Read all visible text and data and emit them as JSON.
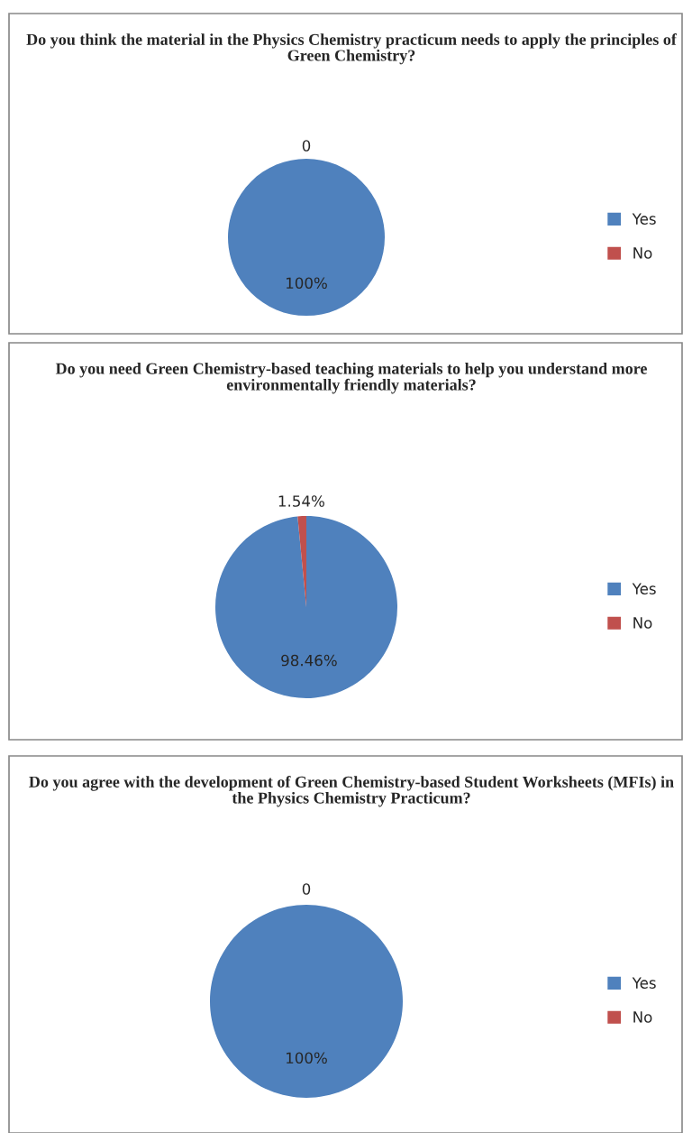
{
  "chart_data": [
    {
      "type": "pie",
      "title": "Do you think the material in the Physics Chemistry practicum needs to apply the principles of Green Chemistry?",
      "categories": [
        "Yes",
        "No"
      ],
      "values": [
        100,
        0
      ],
      "colors": [
        "#4f81bd",
        "#c0504d"
      ],
      "value_labels": [
        "100%",
        "0"
      ],
      "legend": "right"
    },
    {
      "type": "pie",
      "title": "Do you need Green Chemistry-based teaching materials to help you understand more environmentally friendly materials?",
      "categories": [
        "Yes",
        "No"
      ],
      "values": [
        98.46,
        1.54
      ],
      "colors": [
        "#4f81bd",
        "#c0504d"
      ],
      "value_labels": [
        "98.46%",
        "1.54%"
      ],
      "legend": "right"
    },
    {
      "type": "pie",
      "title": "Do you agree with the development of Green Chemistry-based Student Worksheets (MFIs) in the Physics Chemistry Practicum?",
      "categories": [
        "Yes",
        "No"
      ],
      "values": [
        100,
        0
      ],
      "colors": [
        "#4f81bd",
        "#c0504d"
      ],
      "value_labels": [
        "100%",
        "0"
      ],
      "legend": "right"
    }
  ]
}
